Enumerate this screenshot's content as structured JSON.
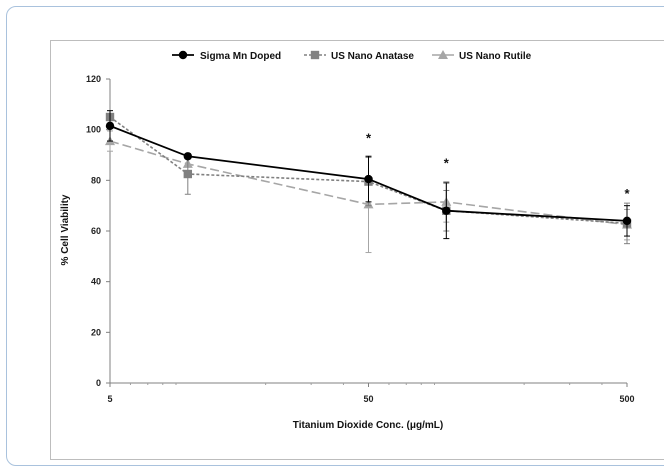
{
  "chart_data": {
    "type": "line",
    "xlabel": "Titanium Dioxide Conc. (μg/mL)",
    "ylabel": "% Cell Viability",
    "x_scale": "log",
    "x_tick_labels": [
      "5",
      "50",
      "500"
    ],
    "x_ticks": [
      5,
      50,
      500
    ],
    "xlim": [
      5,
      500
    ],
    "ylim": [
      0,
      120
    ],
    "y_ticks": [
      0,
      20,
      40,
      60,
      80,
      100,
      120
    ],
    "legend_position": "top",
    "grid": false,
    "x": [
      5,
      10,
      50,
      100,
      500
    ],
    "series": [
      {
        "name": "Sigma Mn Doped",
        "values": [
          101.5,
          89.5,
          80.5,
          68,
          64
        ],
        "errors": [
          6,
          0,
          9,
          11,
          6
        ],
        "color": "#000000",
        "line_style": "solid",
        "marker": "circle"
      },
      {
        "name": "US Nano Anatase",
        "values": [
          105,
          82.5,
          79.5,
          68,
          63
        ],
        "errors": [
          0,
          8,
          9.5,
          8,
          8
        ],
        "color": "#808080",
        "line_style": "dotted",
        "marker": "square"
      },
      {
        "name": "US Nano Rutile",
        "values": [
          95.5,
          86.5,
          70.5,
          71.5,
          62.5
        ],
        "errors": [
          4,
          0,
          19,
          8,
          6
        ],
        "color": "#a6a6a6",
        "line_style": "dashed",
        "marker": "triangle"
      }
    ],
    "annotations": [
      {
        "text": "*",
        "x": 50,
        "y": 97
      },
      {
        "text": "*",
        "x": 100,
        "y": 87
      },
      {
        "text": "*",
        "x": 500,
        "y": 75
      }
    ]
  }
}
